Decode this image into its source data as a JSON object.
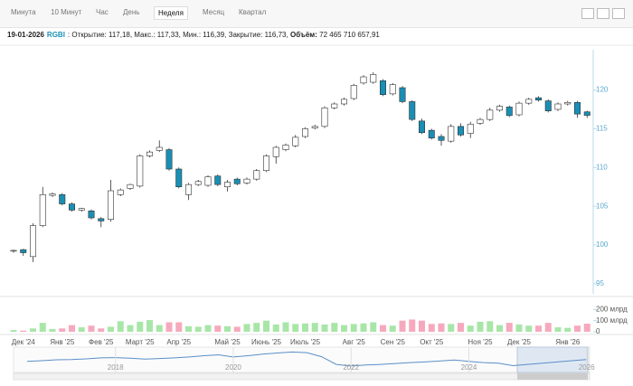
{
  "toolbar": {
    "tabs": [
      "Минута",
      "10 Минут",
      "Час",
      "День",
      "Неделя",
      "Месяц",
      "Квартал"
    ],
    "active": 4
  },
  "info": {
    "date": "19-01-2026",
    "ticker": "RGBI",
    "text": ": Открытие: 117,18, Макс.: 117,33, Мин.: 116,39, Закрытие: 116,73,",
    "volume_label": "Объём:",
    "volume": "72 465 710 657,91"
  },
  "chart_data": [
    {
      "type": "candlestick",
      "categories": [
        null,
        "Дек '24",
        null,
        null,
        null,
        "Янв '25",
        null,
        null,
        null,
        "Фев '25",
        null,
        null,
        null,
        "Март '25",
        null,
        null,
        null,
        "Апр '25",
        null,
        null,
        null,
        null,
        "Май '25",
        null,
        null,
        null,
        "Июнь '25",
        null,
        null,
        null,
        "Июль '25",
        null,
        null,
        null,
        null,
        "Авг '25",
        null,
        null,
        null,
        "Сен '25",
        null,
        null,
        null,
        "Окт '25",
        null,
        null,
        null,
        null,
        "Ноя '25",
        null,
        null,
        null,
        "Дек '25",
        null,
        null,
        null,
        null,
        "Янв '26",
        null,
        null
      ],
      "open": [
        99.2,
        99.4,
        98.5,
        102.5,
        106.4,
        106.5,
        105.3,
        104.5,
        104.4,
        103.4,
        103.3,
        106.5,
        107.3,
        107.6,
        111.5,
        112.2,
        112.3,
        109.8,
        106.5,
        107.8,
        107.7,
        108.9,
        107.5,
        108.5,
        108.0,
        108.5,
        109.6,
        111.4,
        112.3,
        112.8,
        114.0,
        115.1,
        115.3,
        117.7,
        118.2,
        118.9,
        120.9,
        121.0,
        121.2,
        119.5,
        120.3,
        118.5,
        116.0,
        114.8,
        114.0,
        113.4,
        115.3,
        114.4,
        115.7,
        116.2,
        117.4,
        117.8,
        116.8,
        118.3,
        119.0,
        118.6,
        117.5,
        118.2,
        118.4,
        117.18
      ],
      "high": [
        99.4,
        99.5,
        102.8,
        107.5,
        106.8,
        106.7,
        105.5,
        104.8,
        104.6,
        103.6,
        108.4,
        107.3,
        107.9,
        111.7,
        112.2,
        113.5,
        112.5,
        110.0,
        108.0,
        108.4,
        109.0,
        109.1,
        108.4,
        108.7,
        108.7,
        109.8,
        111.7,
        112.8,
        113.1,
        114.2,
        115.2,
        115.5,
        117.9,
        118.4,
        119.0,
        120.8,
        121.9,
        122.3,
        121.4,
        120.9,
        120.5,
        118.7,
        116.3,
        115.0,
        114.3,
        115.6,
        115.7,
        115.9,
        116.4,
        117.7,
        118.1,
        118.0,
        118.5,
        119.0,
        119.2,
        118.8,
        118.4,
        118.6,
        118.6,
        117.33
      ],
      "low": [
        99.0,
        98.6,
        97.8,
        102.3,
        106.2,
        105.1,
        104.3,
        104.3,
        103.3,
        102.3,
        103.0,
        106.3,
        107.1,
        107.4,
        111.3,
        112.0,
        109.6,
        107.3,
        105.8,
        107.6,
        107.5,
        107.6,
        106.9,
        107.7,
        107.8,
        108.3,
        109.4,
        110.5,
        112.1,
        112.6,
        113.8,
        114.9,
        115.1,
        117.5,
        118.0,
        118.7,
        120.7,
        120.8,
        119.2,
        119.3,
        118.3,
        116.0,
        114.3,
        113.6,
        112.8,
        113.2,
        114.0,
        113.8,
        115.5,
        116.0,
        117.2,
        116.5,
        116.6,
        118.1,
        118.5,
        117.1,
        117.3,
        118.0,
        116.4,
        116.39
      ],
      "close": [
        99.3,
        99.0,
        102.5,
        106.5,
        106.6,
        105.3,
        104.5,
        104.7,
        103.5,
        103.1,
        107.0,
        107.1,
        107.8,
        111.5,
        112.0,
        112.6,
        109.8,
        107.5,
        107.8,
        108.2,
        108.8,
        107.8,
        108.1,
        107.9,
        108.5,
        109.6,
        111.5,
        112.6,
        112.9,
        113.9,
        115.0,
        115.3,
        117.7,
        118.2,
        118.8,
        120.6,
        121.7,
        122.0,
        119.4,
        120.7,
        118.5,
        116.2,
        114.5,
        113.8,
        113.5,
        115.3,
        114.2,
        115.6,
        116.2,
        117.4,
        117.9,
        116.7,
        118.3,
        118.8,
        118.7,
        117.3,
        118.2,
        118.4,
        116.9,
        116.73
      ],
      "up_color": "#ffffff",
      "down_color": "#1a8fb5",
      "edge_color": "#333333",
      "ylim": [
        93.7,
        125.2
      ],
      "yticks": [
        95,
        100,
        105,
        110,
        115,
        120
      ]
    },
    {
      "type": "volume",
      "values": [
        15,
        10,
        30,
        80,
        25,
        30,
        60,
        40,
        55,
        30,
        45,
        95,
        60,
        90,
        105,
        60,
        85,
        85,
        50,
        45,
        60,
        55,
        50,
        45,
        70,
        80,
        100,
        65,
        85,
        70,
        75,
        80,
        65,
        80,
        60,
        70,
        75,
        85,
        60,
        55,
        100,
        110,
        100,
        70,
        75,
        70,
        80,
        55,
        90,
        95,
        60,
        80,
        65,
        55,
        55,
        80,
        40,
        35,
        55,
        72.47
      ],
      "up_color": "#a8e6a8",
      "down_color": "#f6a9bd",
      "ylim": [
        0,
        260
      ],
      "yticks": [
        0,
        {
          "value": 100,
          "label": "100 млрд"
        },
        {
          "value": 200,
          "label": "200 млрд"
        }
      ]
    },
    {
      "type": "navigator",
      "x": [
        2016.5,
        2016.75,
        2017,
        2017.25,
        2017.5,
        2017.75,
        2018,
        2018.25,
        2018.5,
        2018.75,
        2019,
        2019.25,
        2019.5,
        2019.75,
        2020,
        2020.25,
        2020.5,
        2020.75,
        2021,
        2021.25,
        2021.5,
        2021.75,
        2022,
        2022.25,
        2022.5,
        2022.75,
        2023,
        2023.25,
        2023.5,
        2023.75,
        2024,
        2024.25,
        2024.5,
        2024.75,
        2025,
        2025.25,
        2025.5,
        2025.75,
        2026
      ],
      "values": [
        110,
        112,
        115,
        116,
        118,
        121,
        122,
        120,
        117,
        119,
        121,
        124,
        128,
        131,
        124,
        128,
        133,
        137,
        140,
        138,
        125,
        100,
        95,
        98,
        100,
        103,
        106,
        108,
        111,
        114,
        110,
        106,
        104,
        96,
        100,
        104,
        108,
        112,
        116
      ],
      "color": "#5b8fc7",
      "ylim": [
        80,
        150
      ],
      "xlim": [
        2016.27,
        2026.05
      ],
      "xticks": [
        2018,
        2020,
        2022,
        2024,
        2026
      ]
    }
  ]
}
